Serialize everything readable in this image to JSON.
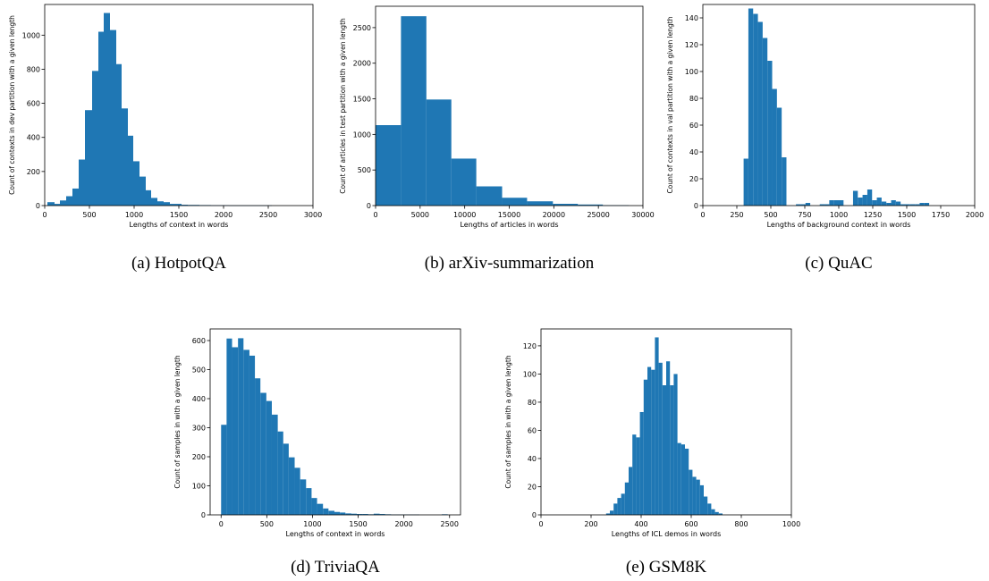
{
  "colors": {
    "bar": "#1f77b4",
    "axis": "#000000",
    "background": "#ffffff"
  },
  "chart_data": [
    {
      "id": "a",
      "type": "bar",
      "caption": "(a)  HotpotQA",
      "xlabel": "Lengths of context in words",
      "ylabel": "Count of contexts in dev partition with a given length",
      "xlim": [
        0,
        3000
      ],
      "ylim": [
        0,
        1180
      ],
      "xticks": [
        0,
        500,
        1000,
        1500,
        2000,
        2500,
        3000
      ],
      "yticks": [
        0,
        200,
        400,
        600,
        800,
        1000
      ],
      "bins": [
        [
          30,
          110,
          20
        ],
        [
          110,
          170,
          10
        ],
        [
          170,
          240,
          30
        ],
        [
          240,
          310,
          55
        ],
        [
          310,
          380,
          100
        ],
        [
          380,
          450,
          270
        ],
        [
          450,
          530,
          560
        ],
        [
          530,
          600,
          790
        ],
        [
          600,
          660,
          1020
        ],
        [
          660,
          730,
          1130
        ],
        [
          730,
          800,
          1030
        ],
        [
          800,
          860,
          830
        ],
        [
          860,
          930,
          570
        ],
        [
          930,
          990,
          410
        ],
        [
          990,
          1060,
          260
        ],
        [
          1060,
          1130,
          170
        ],
        [
          1130,
          1190,
          90
        ],
        [
          1190,
          1260,
          45
        ],
        [
          1260,
          1330,
          25
        ],
        [
          1330,
          1400,
          20
        ],
        [
          1400,
          1460,
          10
        ],
        [
          1460,
          1530,
          10
        ],
        [
          1530,
          1600,
          5
        ],
        [
          1600,
          1660,
          4
        ],
        [
          1660,
          1730,
          4
        ],
        [
          1730,
          1800,
          3
        ],
        [
          1800,
          1860,
          3
        ],
        [
          1860,
          1930,
          2
        ],
        [
          1930,
          2000,
          2
        ],
        [
          2000,
          2060,
          2
        ],
        [
          2060,
          2130,
          1
        ],
        [
          2130,
          2200,
          1
        ],
        [
          2200,
          2260,
          1
        ],
        [
          2260,
          2330,
          1
        ],
        [
          2330,
          2400,
          1
        ],
        [
          2400,
          2470,
          1
        ],
        [
          2470,
          2540,
          1
        ]
      ]
    },
    {
      "id": "b",
      "type": "bar",
      "caption": "(b)  arXiv-summarization",
      "xlabel": "Lengths of articles in words",
      "ylabel": "Count of articles in test partition with a given length",
      "xlim": [
        0,
        30000
      ],
      "ylim": [
        0,
        2800
      ],
      "xticks": [
        0,
        5000,
        10000,
        15000,
        20000,
        25000,
        30000
      ],
      "yticks": [
        0,
        500,
        1000,
        1500,
        2000,
        2500
      ],
      "bins": [
        [
          0,
          2850,
          1130
        ],
        [
          2850,
          5700,
          2660
        ],
        [
          5700,
          8500,
          1490
        ],
        [
          8500,
          11300,
          660
        ],
        [
          11300,
          14200,
          270
        ],
        [
          14200,
          17000,
          110
        ],
        [
          17000,
          19900,
          60
        ],
        [
          19900,
          22700,
          25
        ],
        [
          22700,
          25500,
          15
        ],
        [
          25500,
          28400,
          5
        ]
      ]
    },
    {
      "id": "c",
      "type": "bar",
      "caption": "(c)  QuAC",
      "xlabel": "Lengths of background context in words",
      "ylabel": "Count of contexts in val partition with a given length",
      "xlim": [
        0,
        2000
      ],
      "ylim": [
        0,
        150
      ],
      "xticks": [
        0,
        250,
        500,
        750,
        1000,
        1250,
        1500,
        1750,
        2000
      ],
      "yticks": [
        0,
        20,
        40,
        60,
        80,
        100,
        120,
        140
      ],
      "bins": [
        [
          300,
          335,
          35
        ],
        [
          335,
          370,
          147
        ],
        [
          370,
          405,
          143
        ],
        [
          405,
          440,
          137
        ],
        [
          440,
          475,
          125
        ],
        [
          475,
          510,
          108
        ],
        [
          510,
          545,
          87
        ],
        [
          545,
          580,
          73
        ],
        [
          580,
          615,
          36
        ],
        [
          615,
          650,
          0
        ],
        [
          650,
          685,
          0
        ],
        [
          685,
          720,
          1
        ],
        [
          720,
          755,
          1
        ],
        [
          755,
          790,
          2
        ],
        [
          790,
          825,
          0
        ],
        [
          825,
          860,
          0
        ],
        [
          860,
          895,
          1
        ],
        [
          895,
          930,
          1
        ],
        [
          930,
          965,
          4
        ],
        [
          965,
          1000,
          4
        ],
        [
          1000,
          1035,
          4
        ],
        [
          1035,
          1070,
          0
        ],
        [
          1070,
          1105,
          0
        ],
        [
          1105,
          1140,
          11
        ],
        [
          1140,
          1175,
          6
        ],
        [
          1175,
          1210,
          8
        ],
        [
          1210,
          1245,
          12
        ],
        [
          1245,
          1280,
          4
        ],
        [
          1280,
          1315,
          6
        ],
        [
          1315,
          1350,
          3
        ],
        [
          1350,
          1385,
          2
        ],
        [
          1385,
          1420,
          4
        ],
        [
          1420,
          1455,
          3
        ],
        [
          1455,
          1490,
          1
        ],
        [
          1490,
          1525,
          1
        ],
        [
          1525,
          1560,
          1
        ],
        [
          1560,
          1595,
          1
        ],
        [
          1595,
          1630,
          2
        ],
        [
          1630,
          1665,
          2
        ]
      ]
    },
    {
      "id": "d",
      "type": "bar",
      "caption": "(d)  TriviaQA",
      "xlabel": "Lengths of context in words",
      "ylabel": "Count of samples in with a given length",
      "xlim": [
        -120,
        2620
      ],
      "ylim": [
        0,
        640
      ],
      "xticks": [
        0,
        500,
        1000,
        1500,
        2000,
        2500
      ],
      "yticks": [
        0,
        100,
        200,
        300,
        400,
        500,
        600
      ],
      "bins": [
        [
          0,
          60,
          310
        ],
        [
          60,
          120,
          607
        ],
        [
          120,
          185,
          577
        ],
        [
          185,
          245,
          608
        ],
        [
          245,
          310,
          568
        ],
        [
          310,
          370,
          548
        ],
        [
          370,
          430,
          470
        ],
        [
          430,
          495,
          420
        ],
        [
          495,
          555,
          392
        ],
        [
          555,
          620,
          345
        ],
        [
          620,
          680,
          287
        ],
        [
          680,
          740,
          245
        ],
        [
          740,
          805,
          198
        ],
        [
          805,
          865,
          162
        ],
        [
          865,
          930,
          122
        ],
        [
          930,
          990,
          92
        ],
        [
          990,
          1050,
          58
        ],
        [
          1050,
          1115,
          38
        ],
        [
          1115,
          1175,
          22
        ],
        [
          1175,
          1240,
          14
        ],
        [
          1240,
          1300,
          10
        ],
        [
          1300,
          1360,
          8
        ],
        [
          1360,
          1425,
          5
        ],
        [
          1425,
          1485,
          4
        ],
        [
          1485,
          1550,
          3
        ],
        [
          1550,
          1610,
          3
        ],
        [
          1610,
          1670,
          2
        ],
        [
          1670,
          1735,
          4
        ],
        [
          1735,
          1795,
          3
        ],
        [
          1795,
          1860,
          2
        ],
        [
          1860,
          1920,
          1
        ],
        [
          1920,
          1980,
          1
        ],
        [
          1980,
          2045,
          1
        ],
        [
          2045,
          2105,
          1
        ],
        [
          2105,
          2170,
          1
        ],
        [
          2170,
          2230,
          0
        ],
        [
          2230,
          2290,
          0
        ],
        [
          2290,
          2355,
          0
        ],
        [
          2355,
          2415,
          0
        ],
        [
          2415,
          2480,
          2
        ]
      ]
    },
    {
      "id": "e",
      "type": "bar",
      "caption": "(e)  GSM8K",
      "xlabel": "Lengths of ICL demos in words",
      "ylabel": "Count of samples in with a given length",
      "xlim": [
        0,
        1000
      ],
      "ylim": [
        0,
        132
      ],
      "xticks": [
        0,
        200,
        400,
        600,
        800,
        1000
      ],
      "yticks": [
        0,
        20,
        40,
        60,
        80,
        100,
        120
      ],
      "bins": [
        [
          245,
          260,
          0
        ],
        [
          260,
          275,
          1
        ],
        [
          275,
          290,
          3
        ],
        [
          290,
          305,
          8
        ],
        [
          305,
          320,
          12
        ],
        [
          320,
          335,
          15
        ],
        [
          335,
          350,
          23
        ],
        [
          350,
          365,
          34
        ],
        [
          365,
          380,
          57
        ],
        [
          380,
          395,
          55
        ],
        [
          395,
          410,
          73
        ],
        [
          410,
          425,
          96
        ],
        [
          425,
          440,
          105
        ],
        [
          440,
          455,
          103
        ],
        [
          455,
          470,
          126
        ],
        [
          470,
          485,
          108
        ],
        [
          485,
          500,
          92
        ],
        [
          500,
          515,
          109
        ],
        [
          515,
          530,
          92
        ],
        [
          530,
          545,
          100
        ],
        [
          545,
          560,
          51
        ],
        [
          560,
          575,
          50
        ],
        [
          575,
          590,
          47
        ],
        [
          590,
          605,
          32
        ],
        [
          605,
          620,
          27
        ],
        [
          620,
          635,
          25
        ],
        [
          635,
          650,
          21
        ],
        [
          650,
          665,
          13
        ],
        [
          665,
          680,
          8
        ],
        [
          680,
          695,
          4
        ],
        [
          695,
          710,
          2
        ],
        [
          710,
          725,
          1
        ]
      ]
    }
  ]
}
